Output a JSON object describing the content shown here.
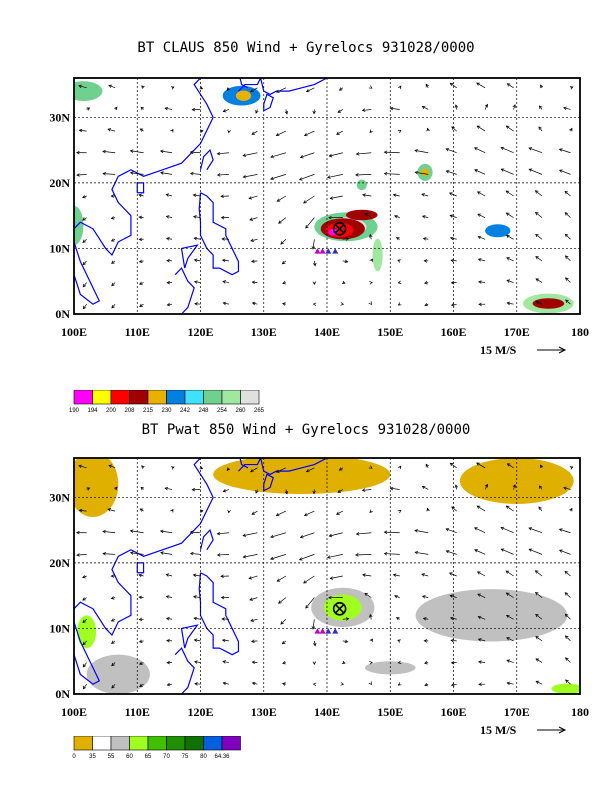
{
  "panels": [
    {
      "title": "BT CLAUS 850 Wind + Gyrelocs 931028/0000",
      "field": "CLAUS",
      "scale_label": "15 M/S",
      "legend": [
        {
          "label": "190",
          "color": "#ff00ff"
        },
        {
          "label": "194",
          "color": "#ffff00"
        },
        {
          "label": "200",
          "color": "#ff0000"
        },
        {
          "label": "208",
          "color": "#a00000"
        },
        {
          "label": "215",
          "color": "#e8b000"
        },
        {
          "label": "230",
          "color": "#0080e0"
        },
        {
          "label": "242",
          "color": "#40e0ff"
        },
        {
          "label": "248",
          "color": "#70d090"
        },
        {
          "label": "254",
          "color": "#a0e8a0"
        },
        {
          "label": "260",
          "color": "#e0e0e0"
        },
        {
          "label": "265",
          "color": null
        }
      ]
    },
    {
      "title": "BT Pwat 850 Wind + Gyrelocs 931028/0000",
      "field": "Pwat",
      "scale_label": "15 M/S",
      "legend": [
        {
          "label": "0",
          "color": "#e0b000"
        },
        {
          "label": "35",
          "color": "#ffffff"
        },
        {
          "label": "55",
          "color": "#c0c0c0"
        },
        {
          "label": "60",
          "color": "#a0ff20"
        },
        {
          "label": "65",
          "color": "#40c000"
        },
        {
          "label": "70",
          "color": "#209000"
        },
        {
          "label": "75",
          "color": "#107000"
        },
        {
          "label": "80",
          "color": "#0060e0"
        },
        {
          "label": "64.36",
          "color": "#8000c0"
        }
      ]
    }
  ],
  "map": {
    "lon_labels": [
      "100E",
      "110E",
      "120E",
      "130E",
      "140E",
      "150E",
      "160E",
      "170E",
      "180"
    ],
    "lat_labels": [
      "0N",
      "10N",
      "20N",
      "30N"
    ],
    "lon_range": [
      100,
      180
    ],
    "lat_range": [
      0,
      36
    ],
    "storm_center": {
      "lon": 142,
      "lat": 13
    },
    "gyre_markers": [
      {
        "lon": 138.5,
        "lat": 9.6,
        "color": "#c000c0"
      },
      {
        "lon": 139.3,
        "lat": 9.6,
        "color": "#c000c0"
      },
      {
        "lon": 140.2,
        "lat": 9.6,
        "color": "#3030c0"
      },
      {
        "lon": 141.3,
        "lat": 9.6,
        "color": "#3030c0"
      }
    ]
  }
}
